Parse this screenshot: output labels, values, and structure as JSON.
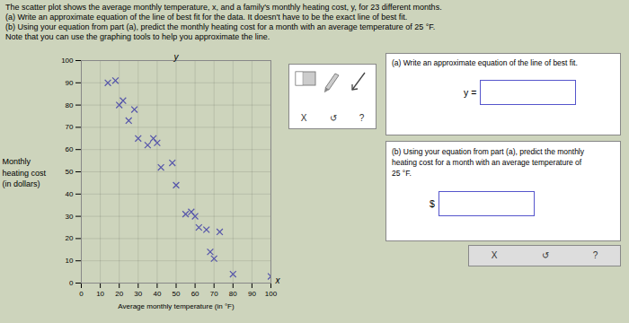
{
  "chart_data": {
    "type": "scatter",
    "title": "The scatter plot shows the average monthly temperature, x, and a family's monthly heating cost, y, for 23 different months.\n(a) Write an approximate equation of the line of best fit for the data. It doesn't have to be the exact line of best fit.\n(b) Using your equation from part (a), predict the monthly heating cost for a month with an average temperature of 25 °F.\nNote that you can use the graphing tools to help you approximate the line.",
    "xlabel": "Average monthly temperature (in °F)",
    "ylabel": "Monthly\nheating cost\n(in dollars)",
    "x": [
      14,
      18,
      20,
      22,
      25,
      28,
      30,
      35,
      38,
      40,
      42,
      48,
      50,
      55,
      58,
      60,
      62,
      66,
      68,
      70,
      73,
      80,
      100
    ],
    "values": [
      90,
      91,
      80,
      82,
      73,
      78,
      65,
      62,
      65,
      63,
      52,
      54,
      44,
      31,
      32,
      30,
      25,
      24,
      14,
      11,
      23,
      4,
      3
    ],
    "color": "#5555aa",
    "marker": "x",
    "xlim": [
      0,
      100
    ],
    "ylim": [
      0,
      100
    ],
    "xticks": [
      0,
      10,
      20,
      30,
      40,
      50,
      60,
      70,
      80,
      90,
      100
    ],
    "yticks": [
      0,
      10,
      20,
      30,
      40,
      50,
      60,
      70,
      80,
      90,
      100
    ],
    "grid": true,
    "annotations": [
      "y",
      "x",
      "(a) Write an approximate equation of the line of best fit.",
      "y =",
      "(b) Using your equation from part (a), predict the monthly\nheating cost for a month with an average temperature of\n25 °F.",
      "$",
      "X",
      "↺",
      "?",
      "X",
      "↺",
      "?"
    ]
  }
}
